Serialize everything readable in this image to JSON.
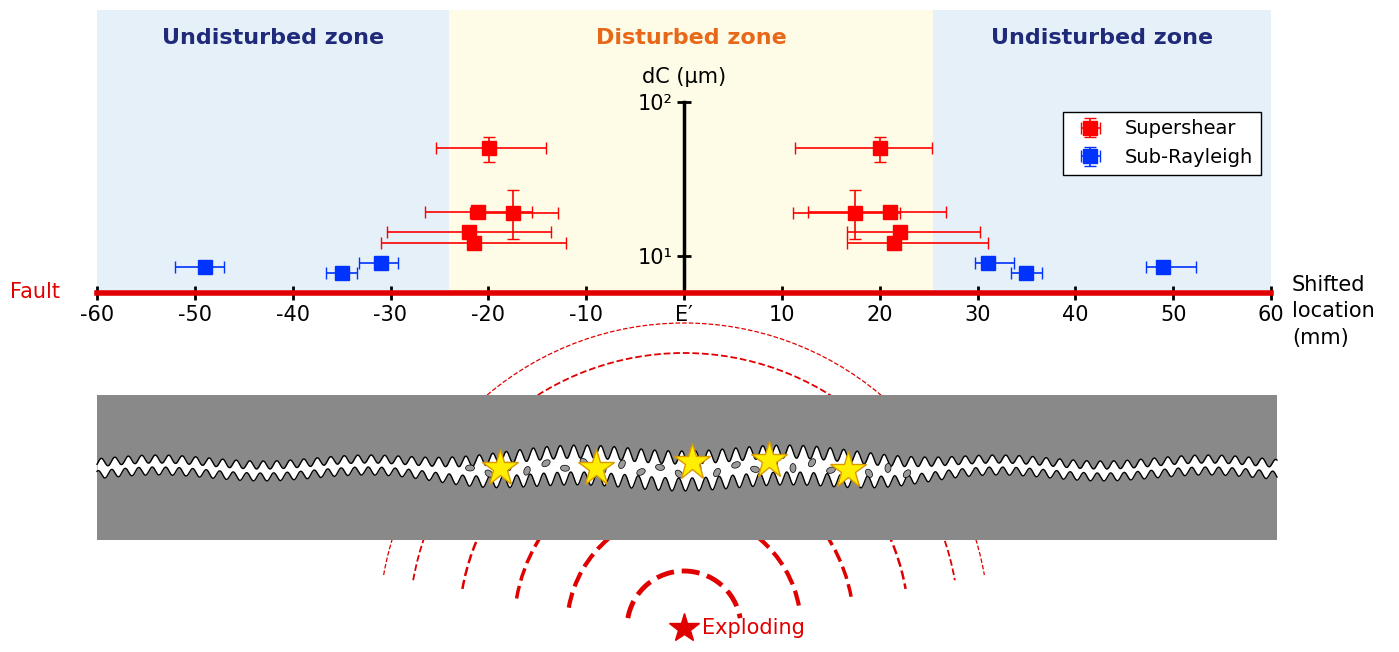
{
  "chart_data": {
    "type": "scatter",
    "xlabel": "Shifted\nlocation\n(mm)",
    "ylabel": "dC (μm)",
    "fault_label": "Fault",
    "xlim": [
      -60,
      60
    ],
    "xticks": [
      -60,
      -50,
      -40,
      -30,
      -20,
      -10,
      {
        "value": 0,
        "label": "E′"
      },
      10,
      20,
      30,
      40,
      50,
      60
    ],
    "ylim": [
      5.8,
      100
    ],
    "yticks": [
      {
        "value": 10,
        "label": "10¹"
      },
      {
        "value": 100,
        "label": "10²"
      }
    ],
    "log": "y",
    "legend": "upper right",
    "zones": [
      {
        "name": "Undisturbed zone",
        "range": [
          -60,
          -24
        ],
        "color": "#1f2a7a"
      },
      {
        "name": "Disturbed zone",
        "range": [
          -24,
          25.5
        ],
        "color": "#e8681a"
      },
      {
        "name": "Undisturbed zone",
        "range": [
          25.5,
          60
        ],
        "color": "#1f2a7a"
      }
    ],
    "series": [
      {
        "name": "Supershear",
        "color": "#ff0000",
        "marker": "square",
        "x": [
          -19.9,
          -21.1,
          -17.5,
          -22.0,
          -21.5,
          20.0,
          21.1,
          17.5,
          22.1,
          21.5
        ],
        "values": [
          50,
          19.3,
          19,
          14.3,
          12.3,
          50,
          19.3,
          19,
          14.3,
          12.3
        ],
        "xerr_low": [
          5.4,
          5.4,
          4.4,
          8.4,
          9.5,
          8.7,
          8.4,
          6.4,
          5.4,
          4.8
        ],
        "xerr_high": [
          5.8,
          5.6,
          4.6,
          8.4,
          9.4,
          5.4,
          5.7,
          4.6,
          8.2,
          9.6
        ],
        "yerr_low": [
          9,
          1,
          6,
          0.8,
          0.8,
          9,
          1,
          6,
          0.8,
          0.8
        ],
        "yerr_high": [
          9,
          1,
          8,
          0.8,
          0.8,
          9,
          1,
          8,
          0.8,
          0.8
        ]
      },
      {
        "name": "Sub-Rayleigh",
        "color": "#0033ff",
        "marker": "square",
        "x": [
          -49.0,
          -35.0,
          -31.0,
          31.1,
          35.0,
          49.0
        ],
        "values": [
          8.6,
          7.8,
          9.1,
          9.1,
          7.8,
          8.6
        ],
        "xerr_low": [
          3.0,
          1.6,
          2.2,
          1.4,
          1.6,
          1.8
        ],
        "xerr_high": [
          2.0,
          1.6,
          1.8,
          2.6,
          1.6,
          3.3
        ],
        "yerr_low": [
          0.4,
          0.3,
          0.4,
          0.4,
          0.3,
          0.4
        ],
        "yerr_high": [
          0.4,
          0.3,
          0.4,
          0.4,
          0.3,
          0.4
        ]
      }
    ]
  },
  "schematic": {
    "source_label": "Exploding"
  }
}
